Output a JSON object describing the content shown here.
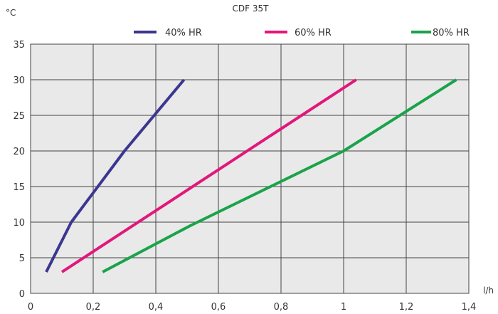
{
  "chart_data": {
    "type": "line",
    "title": "CDF 35T",
    "xlabel": "l/h",
    "ylabel": "°C",
    "xlim": [
      0,
      1.4
    ],
    "ylim": [
      0,
      35
    ],
    "x_ticks": [
      0,
      0.2,
      0.4,
      0.6,
      0.8,
      1,
      1.2,
      1.4
    ],
    "x_tick_labels": [
      "0",
      "0,2",
      "0,4",
      "0,6",
      "0,8",
      "1",
      "1,2",
      "1,4"
    ],
    "y_ticks": [
      0,
      5,
      10,
      15,
      20,
      25,
      30,
      35
    ],
    "y_tick_labels": [
      "0",
      "5",
      "10",
      "15",
      "20",
      "25",
      "30",
      "35"
    ],
    "grid": true,
    "legend_position": "top",
    "series": [
      {
        "name": "40% HR",
        "color": "#3b3790",
        "points": [
          [
            0.05,
            3
          ],
          [
            0.13,
            10
          ],
          [
            0.3,
            20
          ],
          [
            0.49,
            30
          ]
        ]
      },
      {
        "name": "60% HR",
        "color": "#e2177a",
        "points": [
          [
            0.1,
            3
          ],
          [
            1.04,
            30
          ]
        ]
      },
      {
        "name": "80% HR",
        "color": "#1aa34a",
        "points": [
          [
            0.23,
            3
          ],
          [
            0.51,
            9.5
          ],
          [
            1.0,
            20
          ],
          [
            1.36,
            30
          ]
        ]
      }
    ]
  }
}
